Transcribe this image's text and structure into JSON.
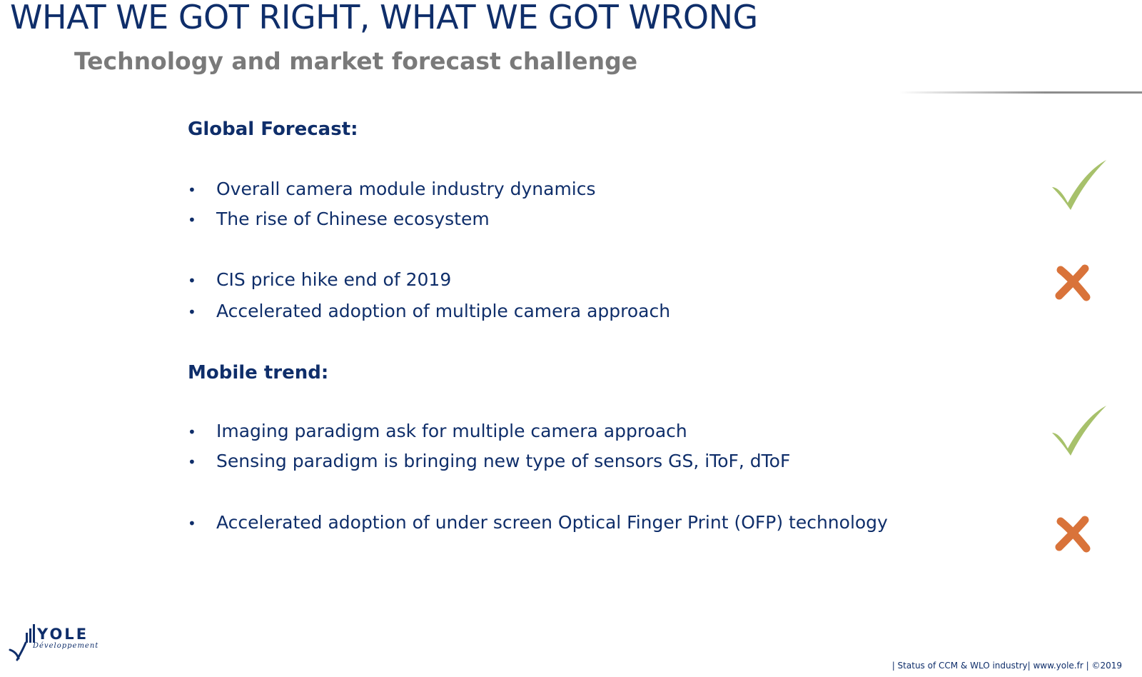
{
  "slide": {
    "title": "WHAT WE GOT RIGHT,  WHAT WE GOT WRONG",
    "subtitle": "Technology and market forecast challenge"
  },
  "sections": [
    {
      "heading": "Global Forecast:",
      "groups": [
        {
          "verdict": "right",
          "items": [
            "Overall camera module industry dynamics",
            "The rise of Chinese ecosystem"
          ]
        },
        {
          "verdict": "wrong",
          "items": [
            "CIS price hike end of 2019",
            "Accelerated adoption of multiple camera approach"
          ]
        }
      ]
    },
    {
      "heading": "Mobile trend:",
      "groups": [
        {
          "verdict": "right",
          "items": [
            "Imaging paradigm ask for multiple camera approach",
            "Sensing paradigm is bringing new type of sensors GS, iToF, dToF"
          ]
        },
        {
          "verdict": "wrong",
          "items": [
            "Accelerated adoption of under screen Optical Finger Print (OFP) technology"
          ]
        }
      ]
    }
  ],
  "bullet_glyph": "•",
  "icons": {
    "right": "check-mark-icon",
    "wrong": "cross-mark-icon"
  },
  "colors": {
    "title": "#0f2e6a",
    "subtitle": "#7a7a7a",
    "check": "#a7c16b",
    "cross": "#d9733a"
  },
  "logo": {
    "name": "YOLE",
    "tagline": "Développement"
  },
  "footer": {
    "text": "| Status of CCM & WLO industry| www.yole.fr | ©2019"
  }
}
